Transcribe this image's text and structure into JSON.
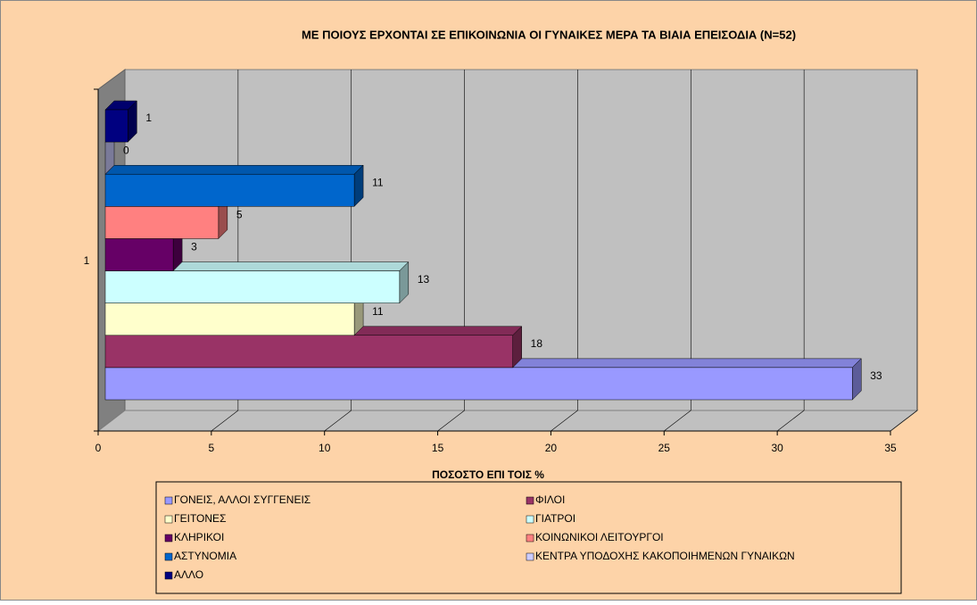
{
  "chart_data": {
    "type": "bar3d_horizontal",
    "title": "ΜΕ ΠΟΙΟΥΣ ΕΡΧΟΝΤΑΙ ΣΕ ΕΠΙΚΟΙΝΩΝΙΑ ΟΙ ΓΥΝΑΙΚΕΣ ΜΕΡΑ ΤΑ ΒΙΑΙΑ ΕΠΕΙΣΟΔΙΑ (N=52)",
    "x_label": "ΠΟΣΟΣΤΟ ΕΠΙ ΤΟΙΣ %",
    "categories": [
      "1"
    ],
    "series": [
      {
        "name": "ΓΟΝΕΙΣ, ΑΛΛΟΙ ΣΥΓΓΕΝΕΙΣ",
        "color": "#9999ff",
        "values": [
          33
        ]
      },
      {
        "name": "ΦΙΛΟΙ",
        "color": "#993366",
        "values": [
          18
        ]
      },
      {
        "name": "ΓΕΙΤΟΝΕΣ",
        "color": "#ffffcc",
        "values": [
          11
        ]
      },
      {
        "name": "ΓΙΑΤΡΟΙ",
        "color": "#ccffff",
        "values": [
          13
        ]
      },
      {
        "name": "ΚΛΗΡΙΚΟΙ",
        "color": "#660066",
        "values": [
          3
        ]
      },
      {
        "name": "ΚΟΙΝΩΝΙΚΟΙ ΛΕΙΤΟΥΡΓΟΙ",
        "color": "#ff8080",
        "values": [
          5
        ]
      },
      {
        "name": "ΑΣΤΥΝΟΜΙΑ",
        "color": "#0066cc",
        "values": [
          11
        ]
      },
      {
        "name": "ΚΕΝΤΡΑ ΥΠΟΔΟΧΗΣ ΚΑΚΟΠΟΙΗΜΕΝΩΝ ΓΥΝΑΙΚΩΝ",
        "color": "#ccccff",
        "values": [
          0
        ]
      },
      {
        "name": "ΑΛΛΟ",
        "color": "#000080",
        "values": [
          1
        ]
      }
    ],
    "xlim": [
      0,
      35
    ],
    "xticks": [
      0,
      5,
      10,
      15,
      20,
      25,
      30,
      35
    ],
    "grid": true,
    "legend": "bottom"
  }
}
